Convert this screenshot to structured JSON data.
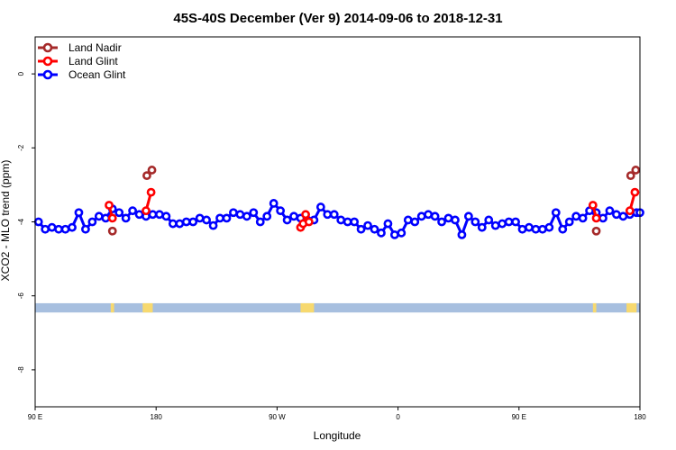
{
  "chart_data": {
    "type": "line",
    "title": "45S-40S December (Ver 9)   2014-09-06 to 2018-12-31",
    "xlabel": "Longitude",
    "ylabel": "XCO2 - MLO trend (ppm)",
    "xlim": [
      0,
      360
    ],
    "ylim": [
      -9.0,
      1.0
    ],
    "x_ticks": [
      {
        "value": 0,
        "label": "90 E"
      },
      {
        "value": 72,
        "label": "180"
      },
      {
        "value": 144,
        "label": "90 W"
      },
      {
        "value": 216,
        "label": "0"
      },
      {
        "value": 288,
        "label": "90 E"
      },
      {
        "value": 360,
        "label": "180"
      }
    ],
    "y_ticks": [
      {
        "value": 0,
        "label": "0"
      },
      {
        "value": -2,
        "label": "-2"
      },
      {
        "value": -4,
        "label": "-4"
      },
      {
        "value": -6,
        "label": "-6"
      },
      {
        "value": -8,
        "label": "-8"
      }
    ],
    "legend_position": "top-left",
    "colors": {
      "land_nadir": "#a52a2a",
      "land_glint": "#ff0000",
      "ocean_glint": "#0000ff",
      "map_ocean": "#a7bfdf",
      "map_land": "#f7d96f"
    },
    "map_strip": {
      "y_range": [
        -6.45,
        -6.2
      ],
      "land_spans": [
        [
          45,
          47
        ],
        [
          64,
          70
        ],
        [
          158,
          166
        ],
        [
          332,
          334
        ],
        [
          352,
          358
        ]
      ]
    },
    "series": [
      {
        "name": "Land Nadir",
        "color_key": "land_nadir",
        "segments": [
          [
            [
              46,
              -4.25
            ]
          ],
          [
            [
              66.5,
              -2.75
            ],
            [
              69.5,
              -2.6
            ]
          ],
          [
            [
              334,
              -4.25
            ]
          ],
          [
            [
              354.5,
              -2.75
            ],
            [
              357.5,
              -2.6
            ]
          ]
        ]
      },
      {
        "name": "Land Glint",
        "color_key": "land_glint",
        "segments": [
          [
            [
              44,
              -3.55
            ],
            [
              46,
              -3.9
            ]
          ],
          [
            [
              66,
              -3.7
            ],
            [
              69,
              -3.2
            ]
          ],
          [
            [
              158,
              -4.15
            ],
            [
              159.5,
              -4.05
            ],
            [
              161,
              -3.8
            ],
            [
              163,
              -4.0
            ]
          ],
          [
            [
              332,
              -3.55
            ],
            [
              334,
              -3.9
            ]
          ],
          [
            [
              354,
              -3.7
            ],
            [
              357,
              -3.2
            ]
          ]
        ]
      },
      {
        "name": "Ocean Glint",
        "color_key": "ocean_glint",
        "x": [
          2,
          6,
          10,
          14,
          18,
          22,
          26,
          30,
          34,
          38,
          42,
          46,
          50,
          54,
          58,
          62,
          66,
          70,
          74,
          78,
          82,
          86,
          90,
          94,
          98,
          102,
          106,
          110,
          114,
          118,
          122,
          126,
          130,
          134,
          138,
          142,
          146,
          150,
          154,
          158,
          162,
          166,
          170,
          174,
          178,
          182,
          186,
          190,
          194,
          198,
          202,
          206,
          210,
          214,
          218,
          222,
          226,
          230,
          234,
          238,
          242,
          246,
          250,
          254,
          258,
          262,
          266,
          270,
          274,
          278,
          282,
          286,
          290,
          294,
          298,
          302,
          306,
          310,
          314,
          318,
          322,
          326,
          330,
          334,
          338,
          342,
          346,
          350,
          354,
          358,
          360
        ],
        "values": [
          -4.0,
          -4.2,
          -4.15,
          -4.2,
          -4.2,
          -4.15,
          -3.75,
          -4.2,
          -4.0,
          -3.85,
          -3.9,
          -3.65,
          -3.75,
          -3.9,
          -3.7,
          -3.8,
          -3.85,
          -3.8,
          -3.8,
          -3.85,
          -4.05,
          -4.05,
          -4.0,
          -4.0,
          -3.9,
          -3.95,
          -4.1,
          -3.9,
          -3.9,
          -3.75,
          -3.8,
          -3.85,
          -3.75,
          -4.0,
          -3.85,
          -3.5,
          -3.7,
          -3.95,
          -3.85,
          -3.9,
          -3.95,
          -3.95,
          -3.6,
          -3.8,
          -3.8,
          -3.95,
          -4.0,
          -4.0,
          -4.2,
          -4.1,
          -4.2,
          -4.3,
          -4.05,
          -4.35,
          -4.3,
          -3.95,
          -4.0,
          -3.85,
          -3.8,
          -3.85,
          -4.0,
          -3.9,
          -3.95,
          -4.35,
          -3.85,
          -4.0,
          -4.15,
          -3.95,
          -4.1,
          -4.05,
          -4.0,
          -4.0,
          -4.2,
          -4.15,
          -4.2,
          -4.2,
          -4.15,
          -3.75,
          -4.2,
          -4.0,
          -3.85,
          -3.9,
          -3.7,
          -3.75,
          -3.9,
          -3.7,
          -3.8,
          -3.85,
          -3.8,
          -3.75,
          -3.75
        ]
      }
    ]
  }
}
